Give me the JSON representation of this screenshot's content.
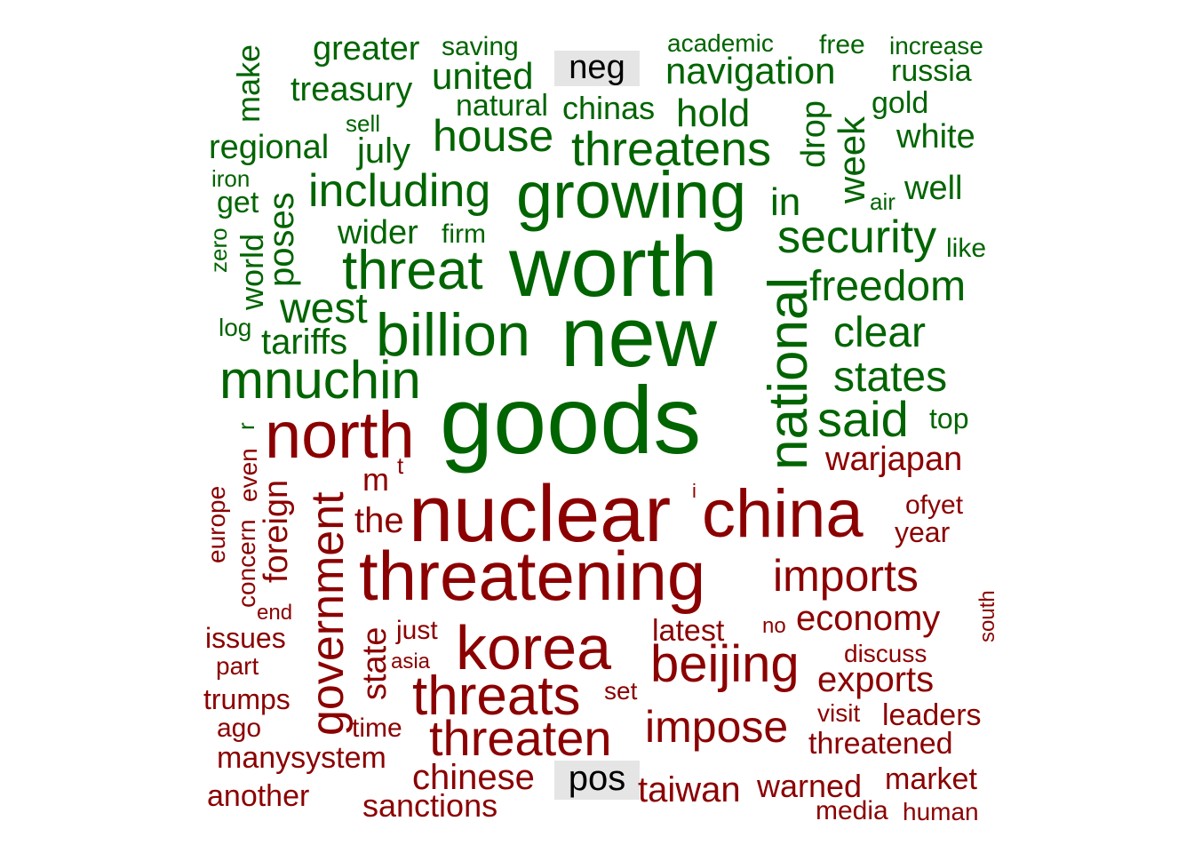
{
  "labels": {
    "neg": "neg",
    "pos": "pos"
  },
  "colors": {
    "neg_group_words": "#006400",
    "pos_group_words": "#8B0000",
    "label_background": "#e5e5e5"
  },
  "neg_words": [
    "greater",
    "saving",
    "academic",
    "free",
    "increase",
    "make",
    "treasury",
    "united",
    "navigation",
    "russia",
    "natural",
    "chinas",
    "hold",
    "gold",
    "sell",
    "drop",
    "regional",
    "july",
    "house",
    "threatens",
    "week",
    "white",
    "iron",
    "get",
    "growing",
    "including",
    "in",
    "air",
    "well",
    "poses",
    "zero",
    "world",
    "wider",
    "firm",
    "security",
    "like",
    "threat",
    "worth",
    "national",
    "freedom",
    "log",
    "west",
    "tariffs",
    "billion",
    "new",
    "clear",
    "mnuchin",
    "states",
    "r",
    "goods",
    "said",
    "top"
  ],
  "pos_words": [
    "north",
    "even",
    "t",
    "warjapan",
    "m",
    "europe",
    "concern",
    "foreign",
    "government",
    "i",
    "the",
    "nuclear",
    "china",
    "ofyet",
    "year",
    "threatening",
    "imports",
    "south",
    "end",
    "economy",
    "no",
    "issues",
    "latest",
    "just",
    "korea",
    "part",
    "state",
    "asia",
    "beijing",
    "discuss",
    "exports",
    "threats",
    "trumps",
    "set",
    "visit",
    "leaders",
    "ago",
    "time",
    "impose",
    "threaten",
    "threatened",
    "manysystem",
    "chinese",
    "taiwan",
    "warned",
    "market",
    "another",
    "sanctions",
    "media",
    "human"
  ]
}
